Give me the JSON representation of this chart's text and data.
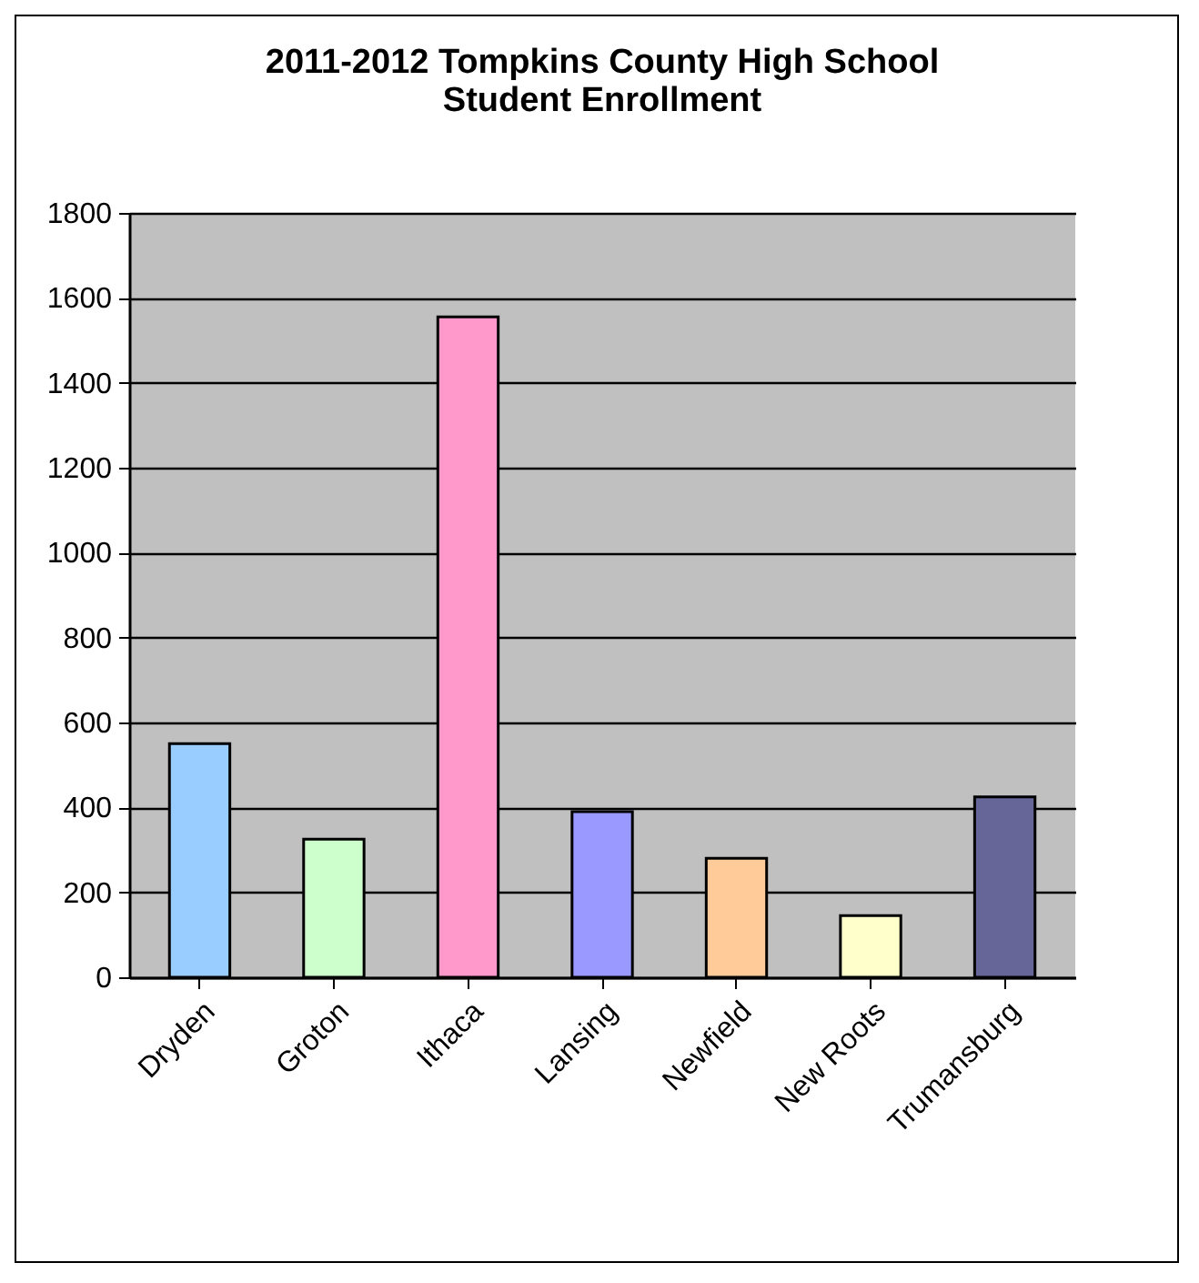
{
  "chart_data": {
    "type": "bar",
    "title": "2011-2012 Tompkins County High School\nStudent Enrollment",
    "categories": [
      "Dryden",
      "Groton",
      "Ithaca",
      "Lansing",
      "Newfield",
      "New Roots",
      "Trumansburg"
    ],
    "values": [
      550,
      325,
      1555,
      390,
      280,
      145,
      425
    ],
    "colors": [
      "#99ccff",
      "#ccffcc",
      "#ff99cc",
      "#9999ff",
      "#ffcc99",
      "#ffffcc",
      "#666699"
    ],
    "ylim": [
      0,
      1800
    ],
    "yticks": [
      0,
      200,
      400,
      600,
      800,
      1000,
      1200,
      1400,
      1600,
      1800
    ],
    "grid": "y",
    "legend": false
  }
}
